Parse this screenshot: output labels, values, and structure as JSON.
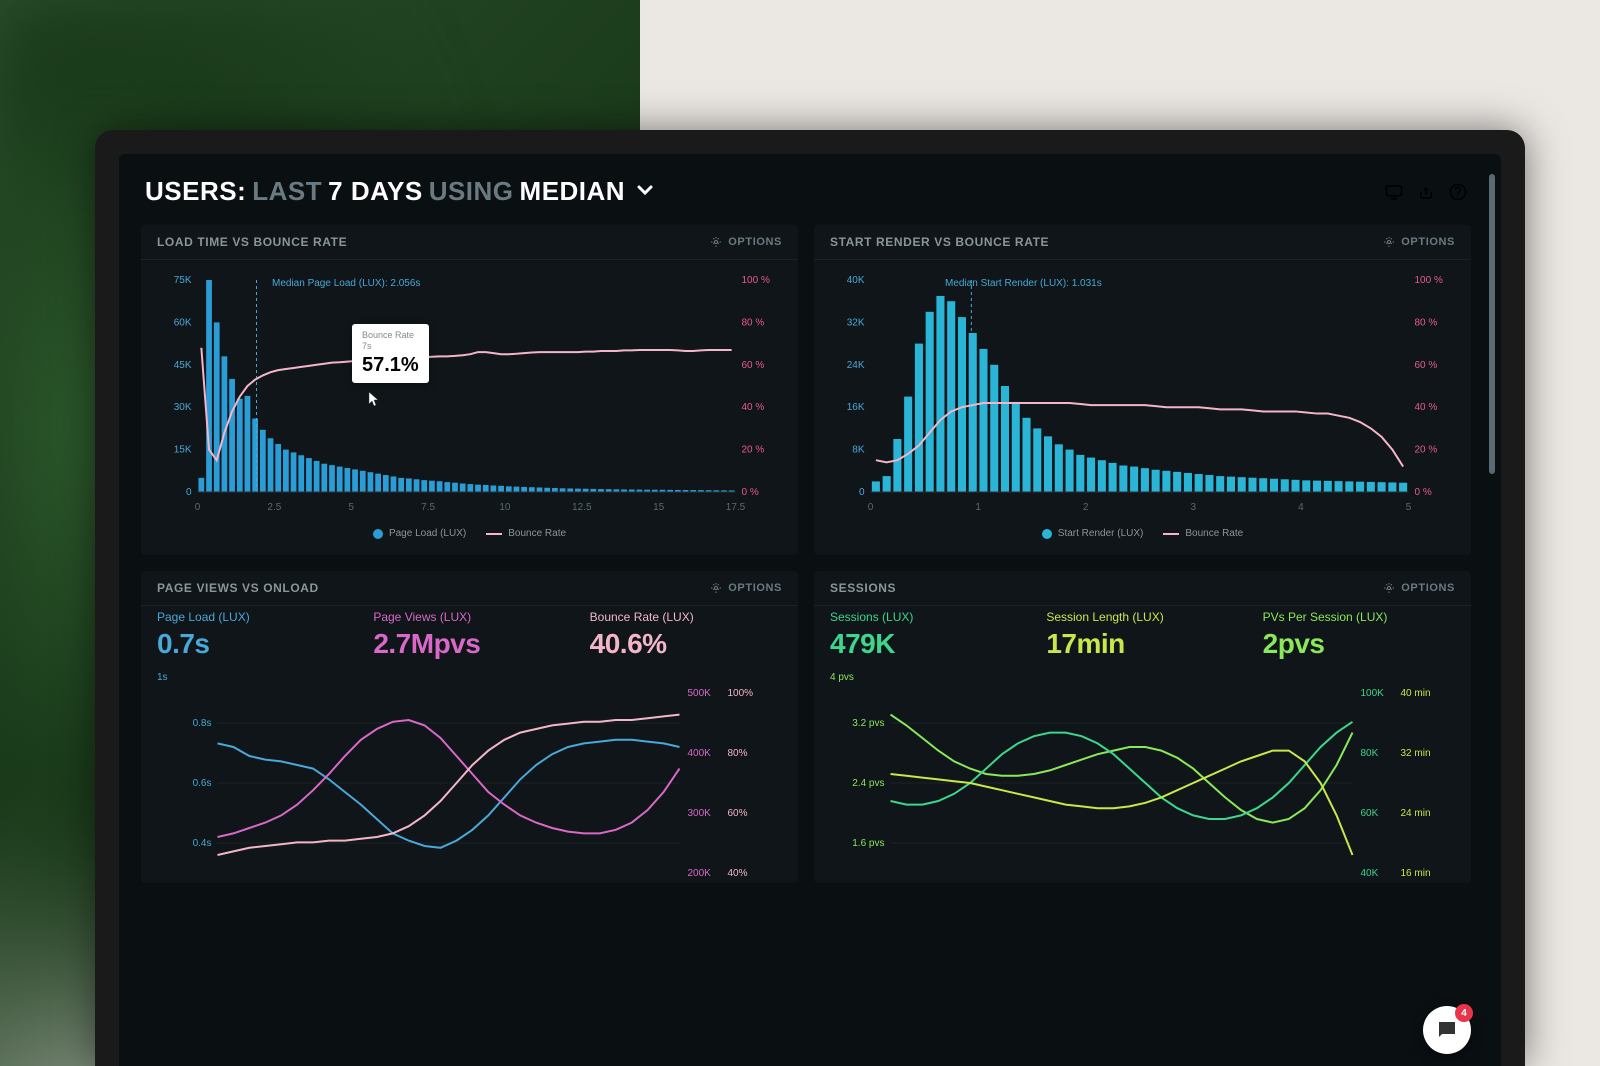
{
  "header": {
    "prefix": "USERS:",
    "dim1": "LAST",
    "bright1": "7 DAYS",
    "dim2": "USING",
    "bright2": "MEDIAN"
  },
  "icons": {
    "monitor": "monitor-icon",
    "share": "share-icon",
    "help": "help-icon"
  },
  "options_label": "OPTIONS",
  "panel1": {
    "title": "LOAD TIME VS BOUNCE RATE",
    "type": "bar+line",
    "median_label": "Median Page Load (LUX): 2.056s",
    "tooltip": {
      "label": "Bounce Rate",
      "sublabel": "7s",
      "value": "57.1%"
    },
    "left_axis": {
      "label_color": "#4aa8d8",
      "ticks": [
        "75K",
        "60K",
        "45K",
        "30K",
        "15K",
        "0"
      ],
      "max": 75
    },
    "right_axis": {
      "label_color": "#e85a8a",
      "ticks": [
        "100 %",
        "80 %",
        "60 %",
        "40 %",
        "20 %",
        "0 %"
      ],
      "max": 100
    },
    "x_ticks": [
      "0",
      "2.5",
      "5",
      "7.5",
      "10",
      "12.5",
      "15",
      "17.5"
    ],
    "bar_color": "#2a9dd6",
    "line_color": "#f5b5c8",
    "median_x": 2.056,
    "bars": [
      5,
      75,
      60,
      48,
      40,
      33,
      34,
      26,
      22,
      19,
      17,
      15,
      14,
      13,
      12,
      11,
      10,
      9.5,
      9,
      8.5,
      8,
      7.5,
      7,
      6.5,
      6,
      5.5,
      5,
      4.8,
      4.5,
      4.2,
      4,
      3.8,
      3.5,
      3.3,
      3,
      2.8,
      2.6,
      2.5,
      2.3,
      2.2,
      2,
      1.9,
      1.8,
      1.7,
      1.6,
      1.5,
      1.4,
      1.3,
      1.25,
      1.2,
      1.15,
      1.1,
      1.05,
      1.0,
      0.95,
      0.9,
      0.88,
      0.85,
      0.82,
      0.8,
      0.78,
      0.75,
      0.72,
      0.7,
      0.68,
      0.65,
      0.63,
      0.6,
      0.58,
      0.55
    ],
    "line": [
      68,
      20,
      15,
      28,
      38,
      45,
      50,
      53,
      55,
      56.5,
      57.5,
      58,
      58.5,
      59,
      59.5,
      60,
      60.5,
      61,
      61.2,
      61.5,
      61.8,
      62,
      62.2,
      62.5,
      62.8,
      63,
      63,
      63.2,
      63.5,
      63.5,
      63.8,
      64,
      64,
      64.2,
      64.5,
      65,
      66,
      66,
      65.5,
      65,
      65,
      65.2,
      65.5,
      65.8,
      66,
      66,
      66,
      66,
      66,
      66,
      66.2,
      66.2,
      66.5,
      66.5,
      66.5,
      66.8,
      66.8,
      67,
      67,
      67,
      67,
      67,
      66.8,
      66.5,
      66.5,
      66.8,
      67,
      67,
      67,
      67
    ],
    "legend": [
      {
        "type": "swatch",
        "color": "#2a9dd6",
        "label": "Page Load (LUX)"
      },
      {
        "type": "line",
        "color": "#f5b5c8",
        "label": "Bounce Rate"
      }
    ]
  },
  "panel2": {
    "title": "START RENDER VS BOUNCE RATE",
    "type": "bar+line",
    "median_label": "Median Start Render (LUX): 1.031s",
    "left_axis": {
      "label_color": "#4aa8d8",
      "ticks": [
        "40K",
        "32K",
        "24K",
        "16K",
        "8K",
        "0"
      ],
      "max": 40
    },
    "right_axis": {
      "label_color": "#e85a8a",
      "ticks": [
        "100 %",
        "80 %",
        "60 %",
        "40 %",
        "20 %",
        "0 %"
      ],
      "max": 100
    },
    "x_ticks": [
      "0",
      "1",
      "2",
      "3",
      "4",
      "5"
    ],
    "bar_color": "#2ab5d6",
    "line_color": "#f5b5c8",
    "median_x": 1.031,
    "bars": [
      2,
      3,
      10,
      18,
      28,
      34,
      37,
      36,
      33,
      30,
      27,
      24,
      20,
      17,
      14,
      12,
      10.5,
      9,
      8,
      7,
      6.5,
      6,
      5.5,
      5,
      4.8,
      4.5,
      4.2,
      4,
      3.8,
      3.6,
      3.4,
      3.2,
      3,
      2.9,
      2.8,
      2.7,
      2.6,
      2.5,
      2.4,
      2.3,
      2.2,
      2.15,
      2.1,
      2.05,
      2,
      1.95,
      1.9,
      1.85,
      1.8,
      1.75
    ],
    "line": [
      15,
      14,
      15,
      18,
      22,
      28,
      34,
      38,
      40,
      41,
      42,
      42,
      42,
      42,
      42,
      42,
      42,
      42,
      42,
      41.5,
      41,
      41,
      41,
      41,
      41,
      41,
      40.5,
      40,
      40,
      40,
      40,
      39.5,
      39,
      39,
      39,
      38.5,
      38,
      38,
      38,
      38,
      37.5,
      37,
      37,
      36,
      35,
      33,
      30,
      26,
      20,
      12
    ],
    "legend": [
      {
        "type": "swatch",
        "color": "#2ab5d6",
        "label": "Start Render (LUX)"
      },
      {
        "type": "line",
        "color": "#f5b5c8",
        "label": "Bounce Rate"
      }
    ]
  },
  "panel3": {
    "title": "PAGE VIEWS VS ONLOAD",
    "metrics": [
      {
        "label": "Page Load (LUX)",
        "value": "0.7s",
        "color": "#4aa8d8"
      },
      {
        "label": "Page Views (LUX)",
        "value": "2.7Mpvs",
        "color": "#d968c8"
      },
      {
        "label": "Bounce Rate (LUX)",
        "value": "40.6%",
        "color": "#f5b5c8"
      }
    ],
    "sub_label": "1s",
    "sub_color": "#4aa8d8",
    "left_ticks": [
      "0.8s",
      "0.6s",
      "0.4s"
    ],
    "right_ticks_a": [
      "500K",
      "400K",
      "300K",
      "200K"
    ],
    "right_ticks_b": [
      "100%",
      "80%",
      "60%",
      "40%"
    ],
    "left_color": "#4aa8d8",
    "right_a_color": "#d968c8",
    "right_b_color": "#f5b5c8",
    "series": {
      "blue": {
        "color": "#4aa8d8",
        "points": [
          72,
          70,
          65,
          63,
          62,
          60,
          58,
          52,
          45,
          38,
          30,
          22,
          18,
          15,
          14,
          18,
          24,
          32,
          42,
          52,
          60,
          66,
          70,
          72,
          73,
          74,
          74,
          73,
          72,
          70
        ]
      },
      "purple": {
        "color": "#d968c8",
        "points": [
          20,
          22,
          25,
          28,
          32,
          38,
          46,
          55,
          65,
          74,
          80,
          84,
          85,
          82,
          75,
          65,
          55,
          45,
          38,
          32,
          28,
          25,
          23,
          22,
          22,
          24,
          28,
          35,
          45,
          58
        ]
      },
      "pink": {
        "color": "#f5b5c8",
        "points": [
          10,
          12,
          14,
          15,
          16,
          17,
          17,
          18,
          18,
          19,
          20,
          22,
          26,
          32,
          40,
          50,
          60,
          68,
          74,
          78,
          80,
          82,
          83,
          84,
          84,
          85,
          85,
          86,
          87,
          88
        ]
      }
    }
  },
  "panel4": {
    "title": "SESSIONS",
    "metrics": [
      {
        "label": "Sessions (LUX)",
        "value": "479K",
        "color": "#3dd68c"
      },
      {
        "label": "Session Length (LUX)",
        "value": "17min",
        "color": "#c8e84a"
      },
      {
        "label": "PVs Per Session (LUX)",
        "value": "2pvs",
        "color": "#8ae85a"
      }
    ],
    "sub_label": "4 pvs",
    "sub_color": "#8ae85a",
    "left_ticks": [
      "3.2 pvs",
      "2.4 pvs",
      "1.6 pvs"
    ],
    "right_ticks_a": [
      "100K",
      "80K",
      "60K",
      "40K"
    ],
    "right_ticks_b": [
      "40 min",
      "32 min",
      "24 min",
      "16 min"
    ],
    "left_color": "#8ae85a",
    "right_a_color": "#3dd68c",
    "right_b_color": "#c8e84a",
    "series": {
      "lightgreen": {
        "color": "#8ae85a",
        "points": [
          88,
          82,
          75,
          68,
          62,
          58,
          55,
          54,
          54,
          55,
          57,
          60,
          63,
          66,
          68,
          70,
          70,
          68,
          64,
          58,
          50,
          42,
          35,
          30,
          28,
          30,
          36,
          46,
          60,
          78
        ]
      },
      "green": {
        "color": "#3dd68c",
        "points": [
          40,
          38,
          38,
          40,
          44,
          50,
          58,
          66,
          72,
          76,
          78,
          78,
          76,
          72,
          66,
          58,
          50,
          42,
          36,
          32,
          30,
          30,
          32,
          36,
          42,
          50,
          60,
          70,
          78,
          84
        ]
      },
      "yellow": {
        "color": "#c8e84a",
        "points": [
          55,
          54,
          53,
          52,
          51,
          50,
          48,
          46,
          44,
          42,
          40,
          38,
          37,
          36,
          36,
          37,
          39,
          42,
          46,
          50,
          54,
          58,
          62,
          65,
          68,
          68,
          62,
          50,
          32,
          10
        ]
      }
    }
  },
  "chat": {
    "badge": "4"
  }
}
